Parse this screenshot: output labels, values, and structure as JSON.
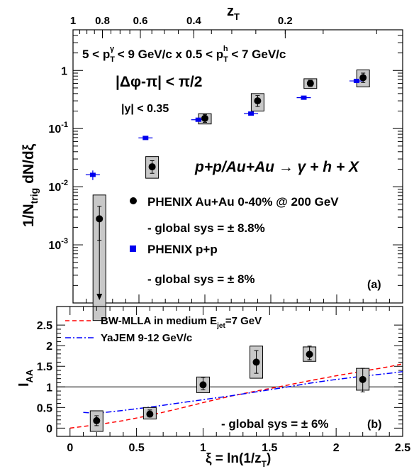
{
  "chart_data": [
    {
      "panel": "(a)",
      "type": "scatter",
      "y_scale": "log",
      "xlim": [
        0,
        2.5
      ],
      "ylim": [
        0.0001,
        5
      ],
      "top_axis": {
        "label": "z",
        "label_sub": "T",
        "ticks": [
          {
            "label": "1",
            "value": 1
          },
          {
            "label": "0.8",
            "value": 0.8
          },
          {
            "label": "0.6",
            "value": 0.6
          },
          {
            "label": "0.4",
            "value": 0.4
          },
          {
            "label": "0.2",
            "value": 0.2
          }
        ]
      },
      "y_axis": {
        "label": "1/N",
        "label_sub": "trig",
        "label_rest": " dN/dξ",
        "ticks": [
          {
            "exp": "-3",
            "value": 0.001
          },
          {
            "exp": "-2",
            "value": 0.01
          },
          {
            "exp": "-1",
            "value": 0.1
          },
          {
            "label": "1",
            "value": 1
          }
        ]
      },
      "annotations": {
        "line1_a": "5 < p",
        "line1_a_sub": "T",
        "line1_a_sup": "γ",
        "line1_b": " < 9 GeV/c x 0.5 < p",
        "line1_b_sub": "T",
        "line1_b_sup": "h",
        "line1_c": " < 7 GeV/c",
        "dphi": "|Δφ-π| < π/2",
        "rapidity": "|y| < 0.35",
        "process": "p+p/Au+Au → γ + h + X",
        "panel_label": "(a)"
      },
      "legend": {
        "auau_label": "PHENIX Au+Au 0-40% @ 200 GeV",
        "auau_sys": "- global sys = ± 8.8%",
        "pp_label": "PHENIX p+p",
        "pp_sys": "- global sys = ± 8%"
      },
      "series": [
        {
          "name": "PHENIX Au+Au 0-40% @ 200 GeV",
          "marker": "circle",
          "color": "#000000",
          "points": [
            {
              "x": 0.2,
              "y": 0.0028,
              "sys_lo": 5e-05,
              "sys_hi": 0.0072,
              "stat_lo": 0.0012,
              "stat_hi": 0.0046,
              "upper_limit": true
            },
            {
              "x": 0.6,
              "y": 0.022,
              "sys_lo": 0.014,
              "sys_hi": 0.033,
              "stat_lo": 0.017,
              "stat_hi": 0.028
            },
            {
              "x": 1.0,
              "y": 0.15,
              "sys_lo": 0.12,
              "sys_hi": 0.18,
              "stat_lo": 0.128,
              "stat_hi": 0.175
            },
            {
              "x": 1.4,
              "y": 0.3,
              "sys_lo": 0.2,
              "sys_hi": 0.4,
              "stat_lo": 0.24,
              "stat_hi": 0.37
            },
            {
              "x": 1.8,
              "y": 0.6,
              "sys_lo": 0.49,
              "sys_hi": 0.72,
              "stat_lo": 0.53,
              "stat_hi": 0.68
            },
            {
              "x": 2.2,
              "y": 0.75,
              "sys_lo": 0.52,
              "sys_hi": 1.02,
              "stat_lo": 0.62,
              "stat_hi": 0.9
            }
          ]
        },
        {
          "name": "PHENIX p+p",
          "marker": "square",
          "color": "#0000ee",
          "points": [
            {
              "x": 0.15,
              "y": 0.016,
              "stat_lo": 0.013,
              "stat_hi": 0.019
            },
            {
              "x": 0.55,
              "y": 0.069,
              "stat_lo": 0.066,
              "stat_hi": 0.072
            },
            {
              "x": 0.95,
              "y": 0.142,
              "stat_lo": 0.136,
              "stat_hi": 0.148
            },
            {
              "x": 1.35,
              "y": 0.181,
              "stat_lo": 0.172,
              "stat_hi": 0.19
            },
            {
              "x": 1.75,
              "y": 0.34,
              "stat_lo": 0.325,
              "stat_hi": 0.355
            },
            {
              "x": 2.15,
              "y": 0.66,
              "stat_lo": 0.63,
              "stat_hi": 0.69
            }
          ]
        }
      ]
    },
    {
      "panel": "(b)",
      "type": "scatter",
      "xlim": [
        -0.1,
        2.5
      ],
      "ylim": [
        -0.2,
        2.95
      ],
      "x_axis": {
        "label": "ξ = ln(1/z",
        "label_sub": "T",
        "label_end": ")",
        "ticks": [
          {
            "label": "0",
            "value": 0
          },
          {
            "label": "0.5",
            "value": 0.5
          },
          {
            "label": "1",
            "value": 1
          },
          {
            "label": "1.5",
            "value": 1.5
          },
          {
            "label": "2",
            "value": 2
          },
          {
            "label": "2.5",
            "value": 2.5
          }
        ]
      },
      "y_axis": {
        "label": "I",
        "label_sub": "AA",
        "ticks": [
          {
            "label": "0",
            "value": 0
          },
          {
            "label": "0.5",
            "value": 0.5
          },
          {
            "label": "1",
            "value": 1
          },
          {
            "label": "1.5",
            "value": 1.5
          },
          {
            "label": "2",
            "value": 2
          },
          {
            "label": "2.5",
            "value": 2.5
          }
        ]
      },
      "reference_line": 1,
      "legend": {
        "bw_label": "BW-MLLA in medium E",
        "bw_sub": "jet",
        "bw_end": "=7 GeV",
        "yajem_label": "YaJEM 9-12 GeV/c"
      },
      "annotations": {
        "sys": "- global sys = ± 6%",
        "panel_label": "(b)"
      },
      "series": [
        {
          "name": "PHENIX Au+Au 0-40% @ 200 GeV",
          "marker": "circle",
          "color": "#000000",
          "points": [
            {
              "x": 0.2,
              "y": 0.18,
              "sys_lo": -0.08,
              "sys_hi": 0.42,
              "stat_lo": 0.06,
              "stat_hi": 0.3
            },
            {
              "x": 0.6,
              "y": 0.34,
              "sys_lo": 0.22,
              "sys_hi": 0.5,
              "stat_lo": 0.27,
              "stat_hi": 0.44
            },
            {
              "x": 1.0,
              "y": 1.05,
              "sys_lo": 0.86,
              "sys_hi": 1.24,
              "stat_lo": 0.93,
              "stat_hi": 1.23
            },
            {
              "x": 1.4,
              "y": 1.6,
              "sys_lo": 1.21,
              "sys_hi": 1.99,
              "stat_lo": 1.33,
              "stat_hi": 1.88
            },
            {
              "x": 1.8,
              "y": 1.79,
              "sys_lo": 1.62,
              "sys_hi": 1.97,
              "stat_lo": 1.66,
              "stat_hi": 1.99
            },
            {
              "x": 2.2,
              "y": 1.18,
              "sys_lo": 0.92,
              "sys_hi": 1.45,
              "stat_lo": 0.88,
              "stat_hi": 1.45
            }
          ]
        },
        {
          "name": "BW-MLLA in medium E_jet=7 GeV",
          "marker": "line",
          "color": "#ff0000",
          "dash": "dashed",
          "x": [
            0.0,
            0.2,
            0.4,
            0.6,
            0.8,
            1.0,
            1.2,
            1.4,
            1.6,
            1.8,
            2.0,
            2.2,
            2.4,
            2.5
          ],
          "y": [
            0.0,
            0.08,
            0.18,
            0.31,
            0.46,
            0.62,
            0.77,
            0.9,
            1.02,
            1.15,
            1.27,
            1.38,
            1.49,
            1.56
          ]
        },
        {
          "name": "YaJEM 9-12 GeV/c",
          "marker": "line",
          "color": "#0000ff",
          "dash": "dash-dot",
          "x": [
            0.1,
            0.2,
            0.4,
            0.6,
            0.8,
            1.0,
            1.2,
            1.4,
            1.6,
            1.8,
            2.0,
            2.2,
            2.4,
            2.5
          ],
          "y": [
            0.38,
            0.36,
            0.43,
            0.51,
            0.6,
            0.69,
            0.78,
            0.88,
            0.98,
            1.09,
            1.18,
            1.26,
            1.33,
            1.37
          ]
        }
      ]
    }
  ]
}
